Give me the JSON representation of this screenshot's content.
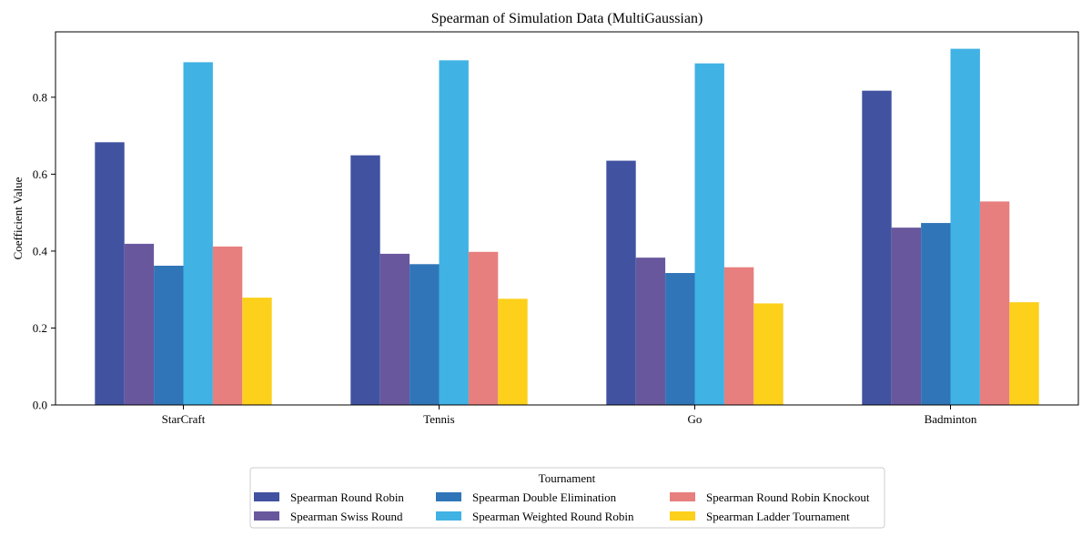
{
  "chart_data": {
    "type": "bar",
    "title": "Spearman of Simulation Data (MultiGaussian)",
    "xlabel": "",
    "ylabel": "Coefficient Value",
    "categories": [
      "StarCraft",
      "Tennis",
      "Go",
      "Badminton"
    ],
    "ylim": [
      0,
      0.97
    ],
    "yticks": [
      "0.0",
      "0.2",
      "0.4",
      "0.6",
      "0.8"
    ],
    "grid": false,
    "legend": {
      "title": "Tournament",
      "placement": "bottom-center"
    },
    "series": [
      {
        "name": "Spearman Round Robin",
        "color": "#4152a0",
        "values": [
          0.683,
          0.649,
          0.635,
          0.817
        ]
      },
      {
        "name": "Spearman Swiss Round",
        "color": "#69579e",
        "values": [
          0.419,
          0.393,
          0.383,
          0.461
        ]
      },
      {
        "name": "Spearman Double Elimination",
        "color": "#2f75b8",
        "values": [
          0.362,
          0.366,
          0.343,
          0.473
        ]
      },
      {
        "name": "Spearman Weighted Round Robin",
        "color": "#40b2e4",
        "values": [
          0.891,
          0.896,
          0.888,
          0.926
        ]
      },
      {
        "name": "Spearman Round Robin Knockout",
        "color": "#e77f7e",
        "values": [
          0.412,
          0.398,
          0.358,
          0.529
        ]
      },
      {
        "name": "Spearman Ladder Tournament",
        "color": "#fcd01b",
        "values": [
          0.279,
          0.276,
          0.264,
          0.267
        ]
      }
    ]
  }
}
